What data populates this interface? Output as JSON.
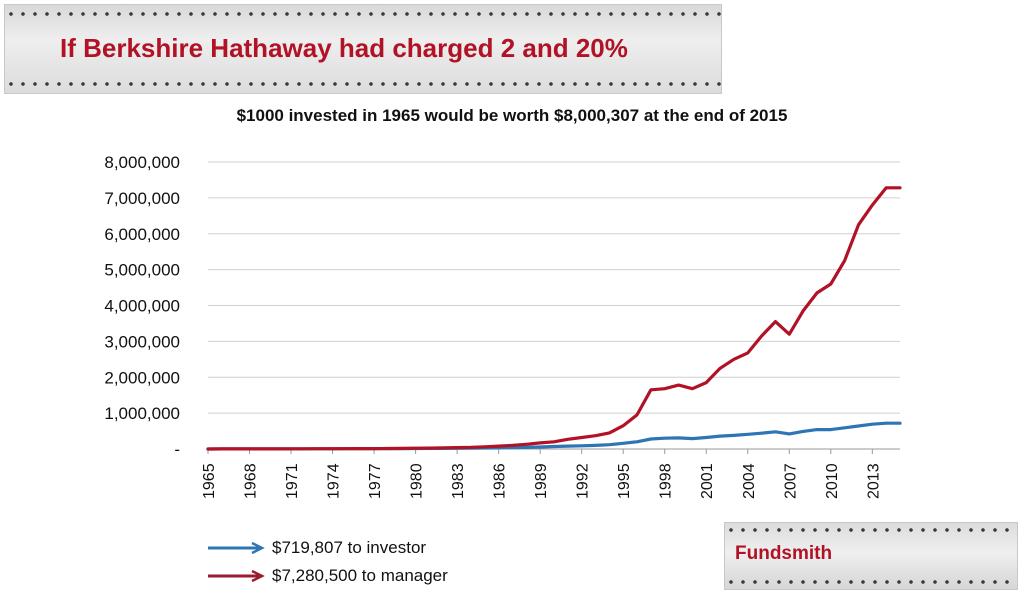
{
  "banner": {
    "title": "If Berkshire Hathaway had charged 2 and 20%"
  },
  "subtitle": "$1000 invested in 1965 would be worth $8,000,307 at the end of 2015",
  "footer": {
    "logo": "Fundsmith"
  },
  "colors": {
    "investor": "#2e75b6",
    "manager": "#b11225",
    "banner_text": "#b11225"
  },
  "chart_data": {
    "type": "line",
    "title": "$1000 invested in 1965 would be worth $8,000,307 at the end of 2015",
    "xlabel": "",
    "ylabel": "",
    "ylim": [
      0,
      8000000
    ],
    "y_ticks": [
      "-",
      "1,000,000",
      "2,000,000",
      "3,000,000",
      "4,000,000",
      "5,000,000",
      "6,000,000",
      "7,000,000",
      "8,000,000"
    ],
    "x_tick_labels": [
      "1965",
      "1968",
      "1971",
      "1974",
      "1977",
      "1980",
      "1983",
      "1986",
      "1989",
      "1992",
      "1995",
      "1998",
      "2001",
      "2004",
      "2007",
      "2010",
      "2013"
    ],
    "grid": true,
    "legend_position": "bottom-left",
    "x": [
      1965,
      1966,
      1967,
      1968,
      1969,
      1970,
      1971,
      1972,
      1973,
      1974,
      1975,
      1976,
      1977,
      1978,
      1979,
      1980,
      1981,
      1982,
      1983,
      1984,
      1985,
      1986,
      1987,
      1988,
      1989,
      1990,
      1991,
      1992,
      1993,
      1994,
      1995,
      1996,
      1997,
      1998,
      1999,
      2000,
      2001,
      2002,
      2003,
      2004,
      2005,
      2006,
      2007,
      2008,
      2009,
      2010,
      2011,
      2012,
      2013,
      2014,
      2015
    ],
    "series": [
      {
        "name": "$7,280,500  to manager",
        "color": "#b11225",
        "values": [
          1000,
          2000,
          2500,
          3000,
          3500,
          4000,
          5000,
          6000,
          7000,
          8000,
          9000,
          10000,
          12000,
          15000,
          18000,
          22000,
          26000,
          30000,
          38000,
          45000,
          60000,
          80000,
          100000,
          130000,
          170000,
          200000,
          270000,
          320000,
          370000,
          450000,
          650000,
          950000,
          1650000,
          1680000,
          1780000,
          1680000,
          1850000,
          2250000,
          2500000,
          2680000,
          3150000,
          3550000,
          3200000,
          3850000,
          4350000,
          4600000,
          5250000,
          6250000,
          6800000,
          7280500,
          7280500
        ]
      },
      {
        "name": "$719,807 to investor",
        "color": "#2e75b6",
        "values": [
          1000,
          1500,
          2000,
          2500,
          3000,
          3500,
          4000,
          5000,
          5000,
          6000,
          7000,
          8000,
          9000,
          10000,
          12000,
          14000,
          16000,
          18000,
          20000,
          24000,
          28000,
          32000,
          38000,
          45000,
          55000,
          70000,
          80000,
          90000,
          100000,
          120000,
          160000,
          200000,
          280000,
          300000,
          310000,
          290000,
          320000,
          360000,
          380000,
          410000,
          440000,
          480000,
          420000,
          490000,
          540000,
          540000,
          590000,
          640000,
          690000,
          719807,
          719807
        ]
      }
    ]
  }
}
